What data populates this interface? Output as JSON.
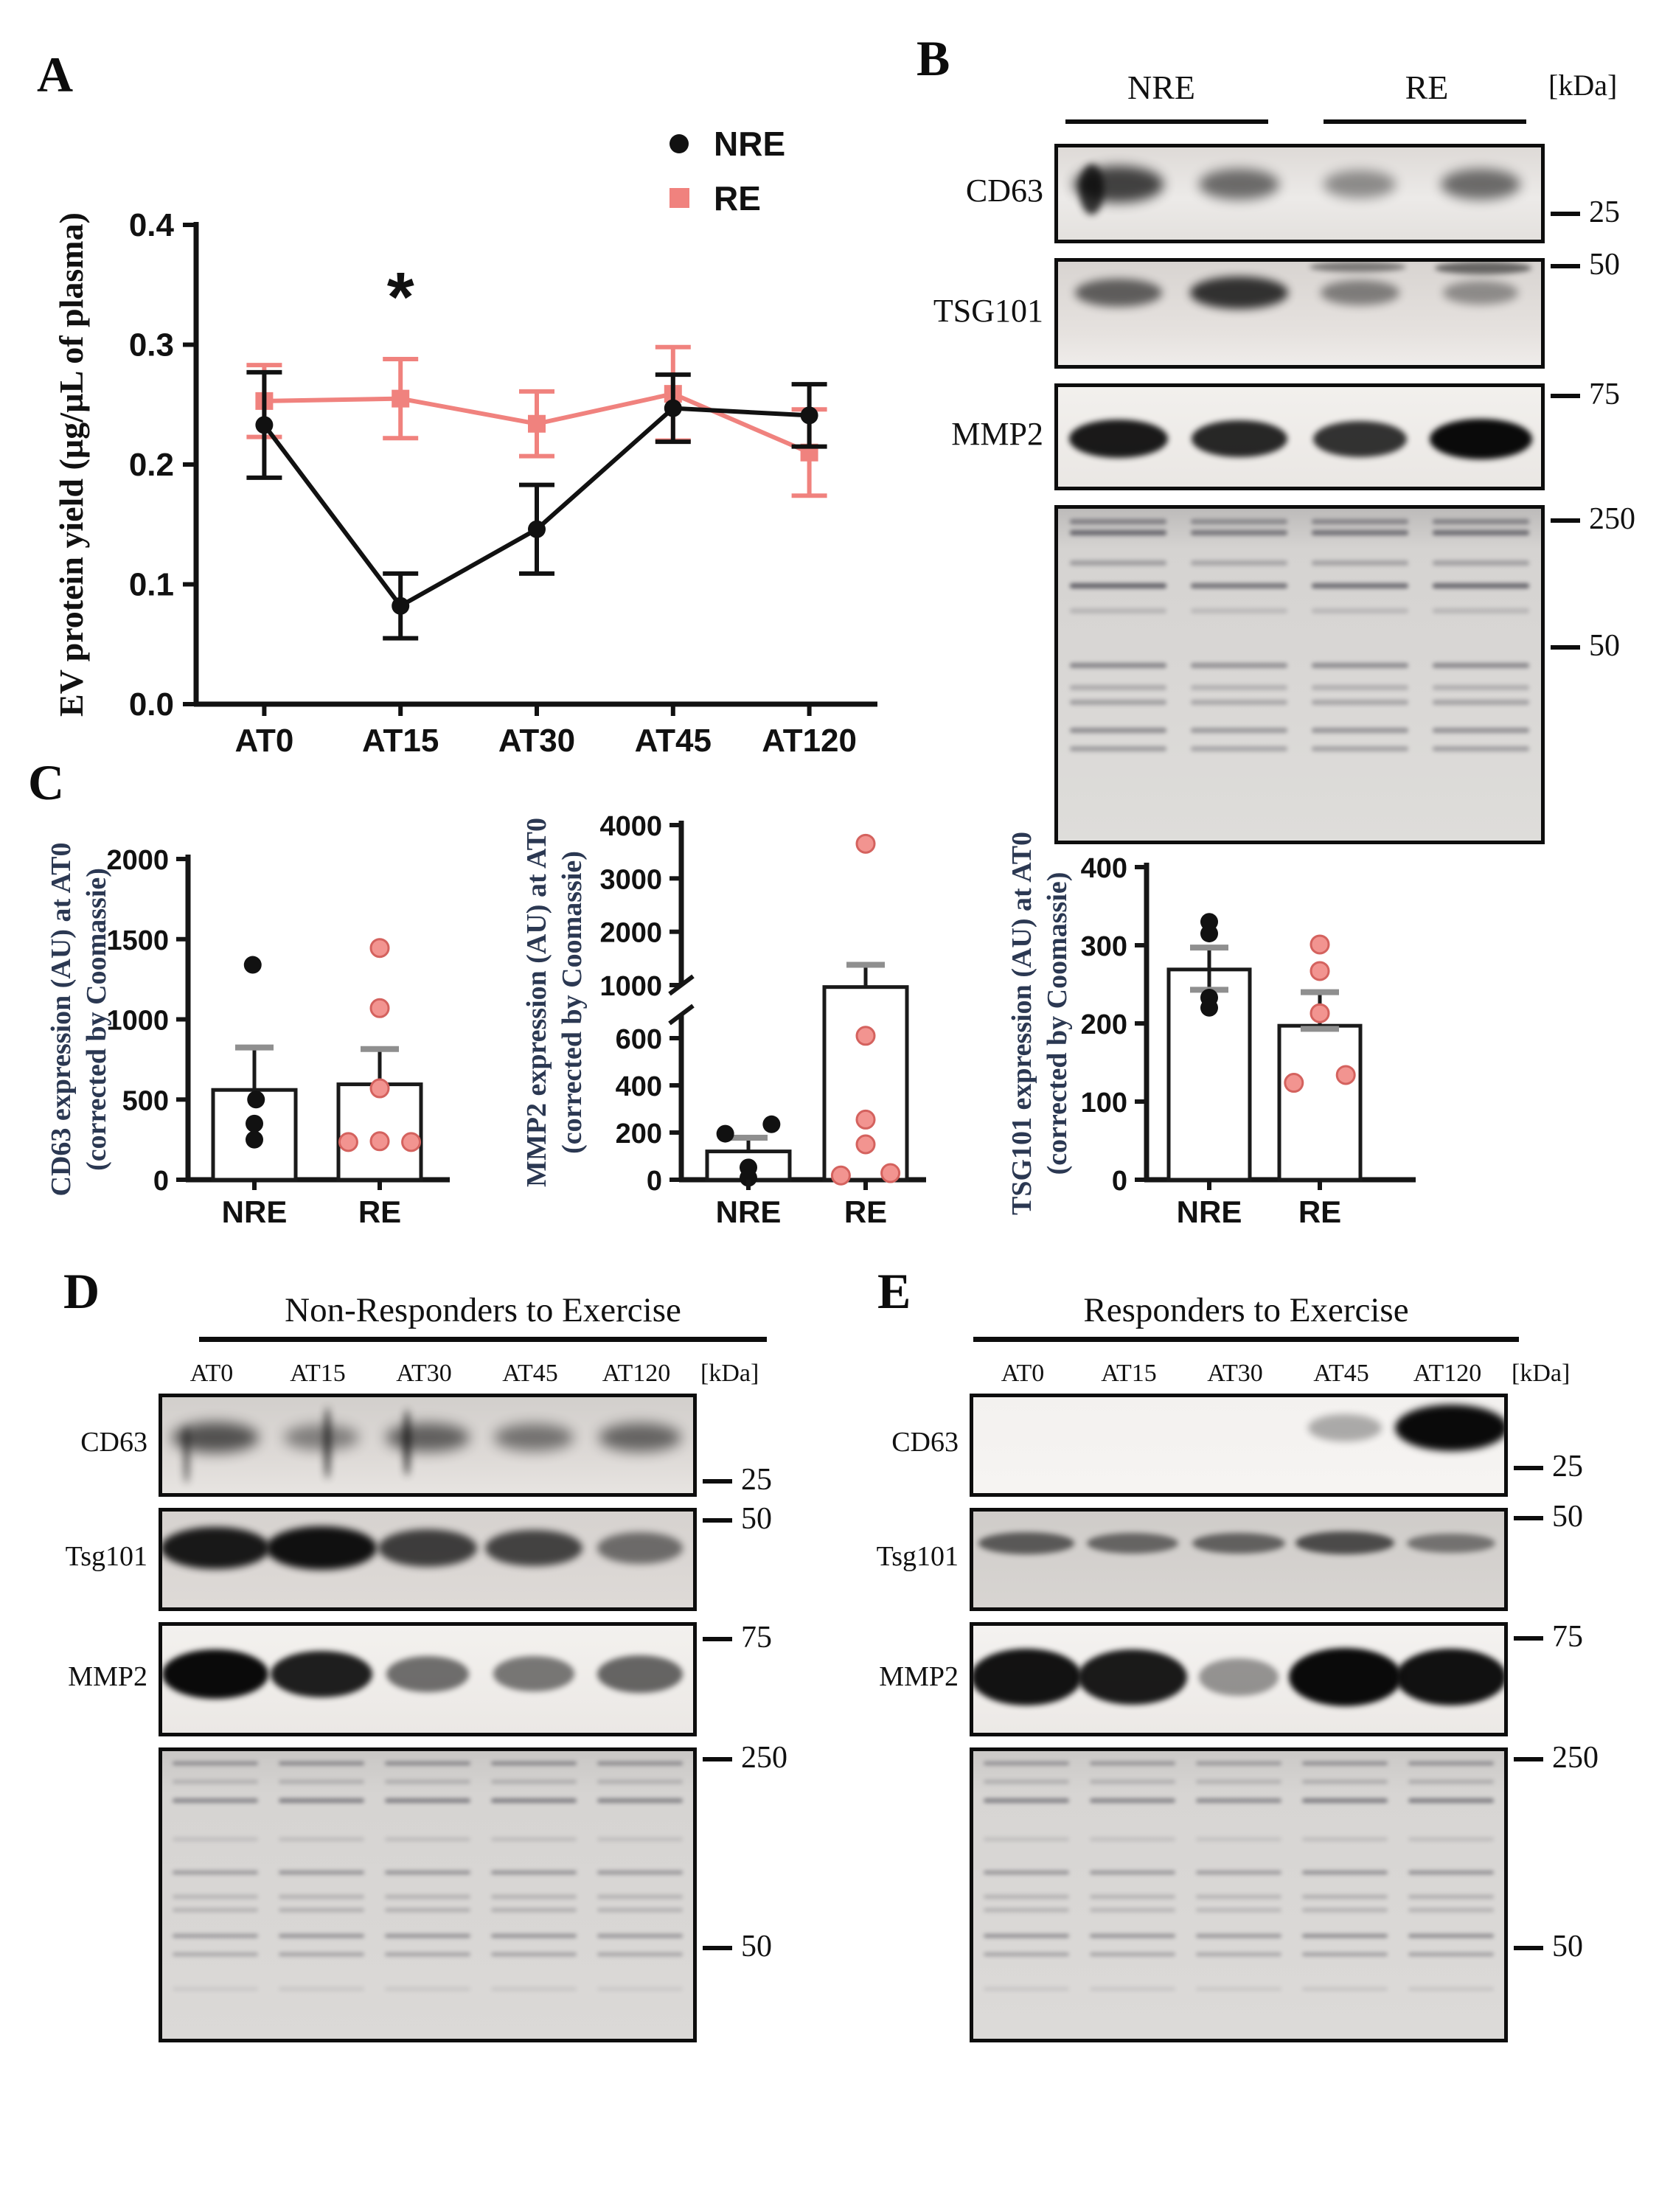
{
  "panels": {
    "a": "A",
    "b": "B",
    "c": "C",
    "d": "D",
    "e": "E"
  },
  "colors": {
    "nre": "#111111",
    "re": "#F0827E",
    "re_point_fill": "#F29490",
    "re_point_stroke": "#D4625E",
    "error_cap_gray": "#8F8F8F",
    "axis_label_navy": "#2B3852",
    "band_black": "#0A0A0A",
    "gel_band": "#45444D"
  },
  "chart_data": [
    {
      "id": "panel_a",
      "type": "line",
      "categories": [
        "AT0",
        "AT15",
        "AT30",
        "AT45",
        "AT120"
      ],
      "series": [
        {
          "name": "NRE",
          "color": "#111111",
          "marker": "circle",
          "values": [
            0.233,
            0.082,
            0.146,
            0.247,
            0.241
          ],
          "errors": [
            0.044,
            0.027,
            0.037,
            0.028,
            0.026
          ]
        },
        {
          "name": "RE",
          "color": "#F0827E",
          "marker": "square",
          "values": [
            0.253,
            0.255,
            0.234,
            0.259,
            0.21
          ],
          "errors": [
            0.03,
            0.033,
            0.027,
            0.039,
            0.036
          ]
        }
      ],
      "ylabel": "EV protein yield (µg/µL of plasma)",
      "ylim": [
        0,
        0.4
      ],
      "yticks": [
        0,
        0.1,
        0.2,
        0.3,
        0.4
      ],
      "legend_position": "top-right",
      "grid": false,
      "annotation": {
        "text": "*",
        "category": "AT15",
        "y": 0.32
      }
    },
    {
      "id": "panel_c_cd63",
      "type": "bar",
      "categories": [
        "NRE",
        "RE"
      ],
      "values": [
        560,
        595
      ],
      "err_hi": [
        825,
        815
      ],
      "err_lo": [
        null,
        null
      ],
      "points": [
        [
          [
            -0.02,
            1340
          ],
          [
            0.02,
            500
          ],
          [
            0,
            350
          ],
          [
            0,
            250
          ]
        ],
        [
          [
            0,
            1445
          ],
          [
            0,
            1070
          ],
          [
            0,
            570
          ],
          [
            -0.38,
            235
          ],
          [
            0,
            240
          ],
          [
            0.38,
            235
          ]
        ]
      ],
      "ylabel_lines": [
        "CD63 expression (AU) at AT0",
        "(corrected by Coomassie)"
      ],
      "ylim": [
        0,
        2000
      ],
      "yticks": [
        0,
        500,
        1000,
        1500,
        2000
      ]
    },
    {
      "id": "panel_c_mmp2",
      "type": "bar",
      "categories": [
        "NRE",
        "RE"
      ],
      "values": [
        120,
        980
      ],
      "err_hi": [
        178,
        1380
      ],
      "err_lo": [
        null,
        null
      ],
      "points": [
        [
          [
            -0.28,
            195
          ],
          [
            0.28,
            235
          ],
          [
            0,
            52
          ],
          [
            0,
            8
          ]
        ],
        [
          [
            0,
            3650
          ],
          [
            0,
            610
          ],
          [
            0,
            255
          ],
          [
            0,
            150
          ],
          [
            -0.3,
            18
          ],
          [
            0.3,
            28
          ]
        ]
      ],
      "axis_break": {
        "lower_max": 700,
        "upper_min": 1000
      },
      "yticks_lower": [
        0,
        200,
        400,
        600
      ],
      "yticks_upper": [
        1000,
        2000,
        3000,
        4000
      ],
      "ylim": [
        0,
        4000
      ],
      "ylabel_lines": [
        "MMP2 expression (AU) at AT0",
        "(corrected by Coomassie)"
      ]
    },
    {
      "id": "panel_c_tsg101",
      "type": "bar",
      "categories": [
        "NRE",
        "RE"
      ],
      "values": [
        269,
        197
      ],
      "err_hi": [
        297,
        240
      ],
      "err_lo": [
        243,
        193
      ],
      "points": [
        [
          [
            0,
            330
          ],
          [
            0,
            315
          ],
          [
            0,
            233
          ],
          [
            0,
            220
          ]
        ],
        [
          [
            0,
            301
          ],
          [
            0,
            267
          ],
          [
            0,
            213
          ],
          [
            0.32,
            134
          ],
          [
            -0.32,
            124
          ]
        ]
      ],
      "ylabel_lines": [
        "TSG101 expression (AU) at AT0",
        "(corrected by Coomassie)"
      ],
      "ylim": [
        0,
        400
      ],
      "yticks": [
        0,
        100,
        200,
        300,
        400
      ]
    }
  ],
  "panel_b": {
    "header": {
      "nre": "NRE",
      "re": "RE",
      "kda": "[kDa]"
    },
    "rows": [
      {
        "label": "CD63",
        "type": "bands",
        "band_y": 0.4,
        "band_w": 0.17,
        "band_h": 0.34,
        "blur": 8,
        "bg": "linear-gradient(180deg,#dedad7,#eceae8 55%,#e4e1de)",
        "lanes": [
          0.72,
          0.5,
          0.33,
          0.5
        ],
        "spots": [
          {
            "x": 0.045,
            "y": 0.18,
            "w": 0.05,
            "h": 0.55,
            "o": 0.8
          }
        ],
        "markers": [
          {
            "label": "25",
            "pos": 0.7
          }
        ]
      },
      {
        "label": "TSG101",
        "type": "bands",
        "band_y": 0.3,
        "band_w": 0.18,
        "band_h": 0.26,
        "blur": 6,
        "bg": "linear-gradient(180deg,#d8d4d1,#e6e2df 70%,#efecea)",
        "lanes": [
          0.55,
          0.78,
          0.38,
          0.3
        ],
        "spots": [
          {
            "x": 0.52,
            "y": 0.0,
            "w": 0.2,
            "h": 0.1,
            "o": 0.45
          },
          {
            "x": 0.78,
            "y": 0.0,
            "w": 0.2,
            "h": 0.12,
            "o": 0.55
          }
        ],
        "markers": [
          {
            "label": "50",
            "pos": 0.07
          }
        ]
      },
      {
        "label": "MMP2",
        "type": "bands",
        "band_y": 0.52,
        "band_w": 0.17,
        "band_h": 0.3,
        "blur": 4,
        "bg": "linear-gradient(180deg,#f2f0ed,#eae7e4)",
        "lanes": [
          0.92,
          0.85,
          0.8,
          1.0
        ],
        "markers": [
          {
            "label": "75",
            "pos": 0.12
          }
        ]
      },
      {
        "label": "",
        "type": "gel",
        "row_h": 0.016,
        "bg": "linear-gradient(180deg,#bdbbba,#d5d3d1 12%,#dad8d6 60%,#deddda)",
        "lane_mult": [
          1,
          0.85,
          0.9,
          0.95
        ],
        "band_rows": [
          [
            0.03,
            0.55
          ],
          [
            0.065,
            0.75
          ],
          [
            0.155,
            0.38
          ],
          [
            0.225,
            0.8
          ],
          [
            0.3,
            0.22
          ],
          [
            0.465,
            0.55
          ],
          [
            0.53,
            0.3
          ],
          [
            0.575,
            0.38
          ],
          [
            0.66,
            0.5
          ],
          [
            0.715,
            0.4
          ]
        ],
        "markers": [
          {
            "label": "250",
            "pos": 0.045
          },
          {
            "label": "50",
            "pos": 0.42
          }
        ]
      }
    ]
  },
  "panel_d": {
    "title": "Non-Responders to Exercise",
    "lane_labels": [
      "AT0",
      "AT15",
      "AT30",
      "AT45",
      "AT120"
    ],
    "kda": "[kDa]",
    "rows": [
      {
        "label": "CD63",
        "type": "bands",
        "band_y": 0.42,
        "band_w": 0.16,
        "band_h": 0.3,
        "blur": 9,
        "bg": "linear-gradient(180deg,#d2cfcc,#ddd9d6 60%,#e7e4e1)",
        "lanes": [
          0.6,
          0.35,
          0.52,
          0.42,
          0.5
        ],
        "spots": [
          {
            "x": 0.305,
            "y": 0.1,
            "w": 0.012,
            "h": 0.75,
            "o": 0.8
          },
          {
            "x": 0.455,
            "y": 0.12,
            "w": 0.012,
            "h": 0.7,
            "o": 0.85
          },
          {
            "x": 0.04,
            "y": 0.3,
            "w": 0.012,
            "h": 0.6,
            "o": 0.6
          }
        ],
        "markers": [
          {
            "label": "25",
            "pos": 0.85
          }
        ]
      },
      {
        "label": "Tsg101",
        "type": "bands",
        "band_y": 0.38,
        "band_w": 0.17,
        "band_h": 0.34,
        "blur": 5,
        "bg": "linear-gradient(180deg,#d6d2cf,#dedad7)",
        "lanes": [
          0.92,
          0.97,
          0.72,
          0.68,
          0.45
        ],
        "markers": [
          {
            "label": "50",
            "pos": 0.12
          }
        ]
      },
      {
        "label": "MMP2",
        "type": "bands",
        "band_y": 0.45,
        "band_w": 0.16,
        "band_h": 0.34,
        "blur": 4,
        "bg": "linear-gradient(180deg,#f3f1ee,#ebe8e5)",
        "lanes": [
          1.0,
          0.9,
          0.5,
          0.45,
          0.55
        ],
        "markers": [
          {
            "label": "75",
            "pos": 0.15
          }
        ]
      },
      {
        "label": "",
        "type": "gel",
        "row_h": 0.014,
        "bg": "linear-gradient(180deg,#c9c7c5,#d6d4d2 15%,#dbd9d7)",
        "lane_mult": [
          0.9,
          1,
          1,
          1,
          0.95
        ],
        "band_rows": [
          [
            0.035,
            0.55
          ],
          [
            0.1,
            0.28
          ],
          [
            0.165,
            0.6
          ],
          [
            0.3,
            0.18
          ],
          [
            0.415,
            0.5
          ],
          [
            0.5,
            0.28
          ],
          [
            0.545,
            0.3
          ],
          [
            0.635,
            0.5
          ],
          [
            0.7,
            0.38
          ],
          [
            0.82,
            0.12
          ]
        ],
        "markers": [
          {
            "label": "250",
            "pos": 0.04
          },
          {
            "label": "50",
            "pos": 0.68
          }
        ]
      }
    ]
  },
  "panel_e": {
    "title": "Responders to Exercise",
    "lane_labels": [
      "AT0",
      "AT15",
      "AT30",
      "AT45",
      "AT120"
    ],
    "kda": "[kDa]",
    "rows": [
      {
        "label": "CD63",
        "type": "bands",
        "band_y": 0.32,
        "band_w": 0.17,
        "band_h": 0.36,
        "blur": 5,
        "bg": "linear-gradient(180deg,#f3f1ef,#f6f4f2)",
        "lanes": [
          0,
          0,
          0,
          0.22,
          1.0
        ],
        "markers": [
          {
            "label": "25",
            "pos": 0.72
          }
        ]
      },
      {
        "label": "Tsg101",
        "type": "bands",
        "band_y": 0.33,
        "band_w": 0.18,
        "band_h": 0.22,
        "blur": 4,
        "bg": "linear-gradient(180deg,#cfccc9,#d8d5d2)",
        "lanes": [
          0.55,
          0.48,
          0.5,
          0.62,
          0.4
        ],
        "markers": [
          {
            "label": "50",
            "pos": 0.1
          }
        ]
      },
      {
        "label": "MMP2",
        "type": "bands",
        "band_y": 0.48,
        "band_w": 0.17,
        "band_h": 0.4,
        "blur": 4,
        "bg": "linear-gradient(180deg,#f4f2f0,#ece9e6)",
        "lanes": [
          0.95,
          0.92,
          0.32,
          1.0,
          0.97
        ],
        "markers": [
          {
            "label": "75",
            "pos": 0.14
          }
        ]
      },
      {
        "label": "",
        "type": "gel",
        "row_h": 0.014,
        "bg": "linear-gradient(180deg,#cbc9c7,#d7d5d3 15%,#dcdad8)",
        "lane_mult": [
          0.95,
          0.9,
          0.85,
          1,
          1
        ],
        "band_rows": [
          [
            0.035,
            0.5
          ],
          [
            0.1,
            0.3
          ],
          [
            0.165,
            0.62
          ],
          [
            0.3,
            0.18
          ],
          [
            0.415,
            0.52
          ],
          [
            0.5,
            0.3
          ],
          [
            0.545,
            0.28
          ],
          [
            0.635,
            0.55
          ],
          [
            0.7,
            0.4
          ],
          [
            0.82,
            0.14
          ]
        ],
        "markers": [
          {
            "label": "250",
            "pos": 0.04
          },
          {
            "label": "50",
            "pos": 0.68
          }
        ]
      }
    ]
  }
}
